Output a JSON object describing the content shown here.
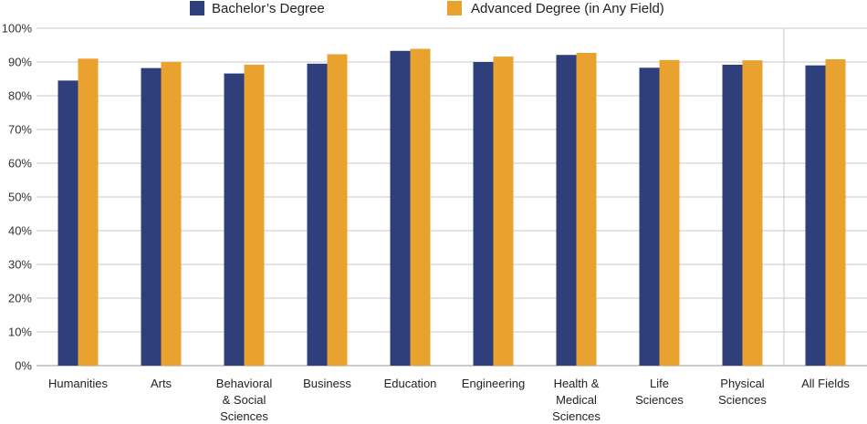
{
  "chart_data": {
    "type": "bar",
    "categories": [
      [
        "Humanities"
      ],
      [
        "Arts"
      ],
      [
        "Behavioral",
        "& Social",
        "Sciences"
      ],
      [
        "Business"
      ],
      [
        "Education"
      ],
      [
        "Engineering"
      ],
      [
        "Health &",
        "Medical",
        "Sciences"
      ],
      [
        "Life",
        "Sciences"
      ],
      [
        "Physical",
        "Sciences"
      ],
      [
        "All Fields"
      ]
    ],
    "series": [
      {
        "name": "Bachelor’s Degree",
        "color": "#2e3f7c",
        "values": [
          84.5,
          88.2,
          86.6,
          89.5,
          93.3,
          90.0,
          92.1,
          88.3,
          89.2,
          89.0
        ]
      },
      {
        "name": "Advanced Degree (in Any Field)",
        "color": "#e8a22d",
        "values": [
          91.0,
          90.0,
          89.2,
          92.3,
          93.9,
          91.6,
          92.7,
          90.6,
          90.5,
          90.8
        ]
      }
    ],
    "yticks": [
      "0%",
      "10%",
      "20%",
      "30%",
      "40%",
      "50%",
      "60%",
      "70%",
      "80%",
      "90%",
      "100%"
    ],
    "ylim": [
      0,
      100
    ],
    "grid": true,
    "legend_position": "top",
    "separator_before_last_category": true
  }
}
